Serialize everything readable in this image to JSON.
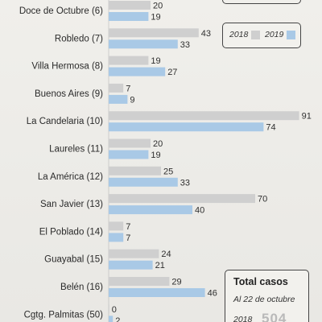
{
  "chart_data": {
    "type": "bar",
    "orientation": "horizontal",
    "categories": [
      "Doce de Octubre (6)",
      "Robledo (7)",
      "Villa Hermosa (8)",
      "Buenos Aires (9)",
      "La Candelaria (10)",
      "Laureles (11)",
      "La América (12)",
      "San Javier (13)",
      "El Poblado (14)",
      "Guayabal (15)",
      "Belén (16)",
      "Cgtg. Palmitas (50)"
    ],
    "series": [
      {
        "name": "2018",
        "color": "#cfcfcf",
        "values": [
          20,
          43,
          19,
          7,
          91,
          20,
          25,
          70,
          7,
          24,
          29,
          0
        ]
      },
      {
        "name": "2019",
        "color": "#a9c9e6",
        "values": [
          19,
          33,
          27,
          9,
          74,
          19,
          33,
          40,
          7,
          21,
          46,
          2
        ]
      }
    ],
    "xlim": [
      0,
      91
    ],
    "legend": {
      "position": "top-right",
      "labels": [
        "2018",
        "2019"
      ]
    }
  },
  "total_box": {
    "title": "Total casos",
    "subtitle": "Al 22 de octubre",
    "year": "2018",
    "value": "504"
  }
}
